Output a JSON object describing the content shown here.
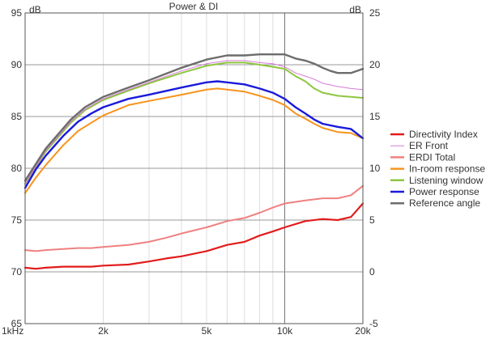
{
  "chart_data": {
    "type": "line",
    "title": "Power & DI",
    "ylabel_left": "dB",
    "ylabel_right": "dB",
    "xscale": "log",
    "xlim": [
      1000,
      20000
    ],
    "ylim_left": [
      65,
      95
    ],
    "ylim_right": [
      -5,
      25
    ],
    "grid": true,
    "legend_position": "right",
    "x_ticks": [
      {
        "value": 1000,
        "label": "1kHz"
      },
      {
        "value": 2000,
        "label": "2k"
      },
      {
        "value": 5000,
        "label": "5k"
      },
      {
        "value": 10000,
        "label": "10k"
      },
      {
        "value": 20000,
        "label": "20k"
      }
    ],
    "y_ticks_left": [
      {
        "value": 65,
        "label": "65"
      },
      {
        "value": 70,
        "label": "70"
      },
      {
        "value": 75,
        "label": "75"
      },
      {
        "value": 80,
        "label": "80"
      },
      {
        "value": 85,
        "label": "85"
      },
      {
        "value": 90,
        "label": "90"
      },
      {
        "value": 95,
        "label": "95"
      }
    ],
    "y_ticks_right": [
      {
        "value": -5,
        "label": "-5"
      },
      {
        "value": 0,
        "label": "0"
      },
      {
        "value": 5,
        "label": "5"
      },
      {
        "value": 10,
        "label": "10"
      },
      {
        "value": 15,
        "label": "15"
      },
      {
        "value": 20,
        "label": "20"
      },
      {
        "value": 25,
        "label": "25"
      }
    ],
    "series": [
      {
        "name": "Directivity Index",
        "color": "#e31b1b",
        "width": 2.2,
        "axis": "right",
        "x": [
          1000,
          1100,
          1200,
          1400,
          1600,
          1800,
          2000,
          2500,
          3000,
          3500,
          4000,
          5000,
          6000,
          7000,
          8000,
          9000,
          10000,
          12000,
          14000,
          16000,
          18000,
          20000
        ],
        "y": [
          0.4,
          0.3,
          0.4,
          0.5,
          0.5,
          0.5,
          0.6,
          0.7,
          1.0,
          1.3,
          1.5,
          2.0,
          2.6,
          2.9,
          3.5,
          3.9,
          4.3,
          4.9,
          5.1,
          5.0,
          5.3,
          6.6
        ]
      },
      {
        "name": "ER Front",
        "color": "#d87ad8",
        "width": 1,
        "axis": "left",
        "x": [
          1000,
          1200,
          1500,
          1700,
          2000,
          2500,
          3000,
          4000,
          5000,
          6000,
          7000,
          8000,
          9000,
          10000,
          11000,
          12000,
          13000,
          14000,
          16000,
          18000,
          20000
        ],
        "y": [
          78.5,
          81.7,
          84.5,
          85.7,
          86.7,
          87.6,
          88.3,
          89.4,
          90.1,
          90.4,
          90.4,
          90.2,
          90.1,
          89.8,
          89.2,
          88.9,
          88.6,
          88.2,
          87.9,
          87.7,
          87.6
        ]
      },
      {
        "name": "ERDI Total",
        "color": "#f08080",
        "width": 2,
        "axis": "right",
        "x": [
          1000,
          1100,
          1200,
          1400,
          1600,
          1800,
          2000,
          2500,
          3000,
          3500,
          4000,
          5000,
          6000,
          7000,
          8000,
          9000,
          10000,
          12000,
          14000,
          16000,
          18000,
          20000
        ],
        "y": [
          2.1,
          2.0,
          2.1,
          2.2,
          2.3,
          2.3,
          2.4,
          2.6,
          2.9,
          3.3,
          3.7,
          4.3,
          4.9,
          5.2,
          5.7,
          6.2,
          6.6,
          6.9,
          7.1,
          7.1,
          7.4,
          8.3
        ]
      },
      {
        "name": "In-room response",
        "color": "#f7941d",
        "width": 2,
        "axis": "left",
        "x": [
          1000,
          1100,
          1200,
          1400,
          1600,
          1800,
          2000,
          2500,
          3000,
          4000,
          5000,
          5500,
          6000,
          7000,
          8000,
          9000,
          10000,
          11000,
          12000,
          13000,
          14000,
          16000,
          18000,
          20000
        ],
        "y": [
          77.6,
          79.1,
          80.3,
          82.2,
          83.6,
          84.4,
          85.1,
          86.1,
          86.5,
          87.1,
          87.6,
          87.7,
          87.6,
          87.4,
          87.0,
          86.6,
          86.1,
          85.3,
          84.8,
          84.3,
          83.9,
          83.5,
          83.4,
          82.9
        ]
      },
      {
        "name": "Listening window",
        "color": "#8dc63f",
        "width": 2,
        "axis": "left",
        "x": [
          1000,
          1200,
          1500,
          1700,
          2000,
          2500,
          3000,
          4000,
          5000,
          6000,
          7000,
          8000,
          9000,
          10000,
          11000,
          12000,
          13000,
          14000,
          16000,
          18000,
          20000
        ],
        "y": [
          78.5,
          81.6,
          84.4,
          85.6,
          86.6,
          87.5,
          88.2,
          89.2,
          89.9,
          90.2,
          90.2,
          90.0,
          89.8,
          89.6,
          88.9,
          88.4,
          87.7,
          87.3,
          87.0,
          86.9,
          86.8
        ]
      },
      {
        "name": "Power response",
        "color": "#1a1adb",
        "width": 2.4,
        "axis": "left",
        "x": [
          1000,
          1100,
          1200,
          1400,
          1600,
          1800,
          2000,
          2500,
          3000,
          4000,
          5000,
          5500,
          6000,
          7000,
          8000,
          9000,
          10000,
          11000,
          12000,
          13000,
          14000,
          16000,
          18000,
          20000
        ],
        "y": [
          78.1,
          79.9,
          81.2,
          83.1,
          84.5,
          85.3,
          85.9,
          86.7,
          87.1,
          87.8,
          88.3,
          88.4,
          88.3,
          88.1,
          87.7,
          87.3,
          86.7,
          85.9,
          85.3,
          84.7,
          84.3,
          84.0,
          83.8,
          82.9
        ]
      },
      {
        "name": "Reference angle",
        "color": "#6d6d6d",
        "width": 2.4,
        "axis": "left",
        "x": [
          1000,
          1200,
          1500,
          1700,
          2000,
          2500,
          3000,
          4000,
          5000,
          6000,
          7000,
          8000,
          9000,
          10000,
          11000,
          12000,
          13000,
          14000,
          15000,
          16000,
          18000,
          20000
        ],
        "y": [
          78.8,
          81.9,
          84.7,
          85.9,
          86.9,
          87.8,
          88.5,
          89.7,
          90.5,
          90.9,
          90.9,
          91.0,
          91.0,
          91.0,
          90.6,
          90.4,
          90.1,
          89.7,
          89.4,
          89.2,
          89.2,
          89.6
        ]
      }
    ]
  }
}
